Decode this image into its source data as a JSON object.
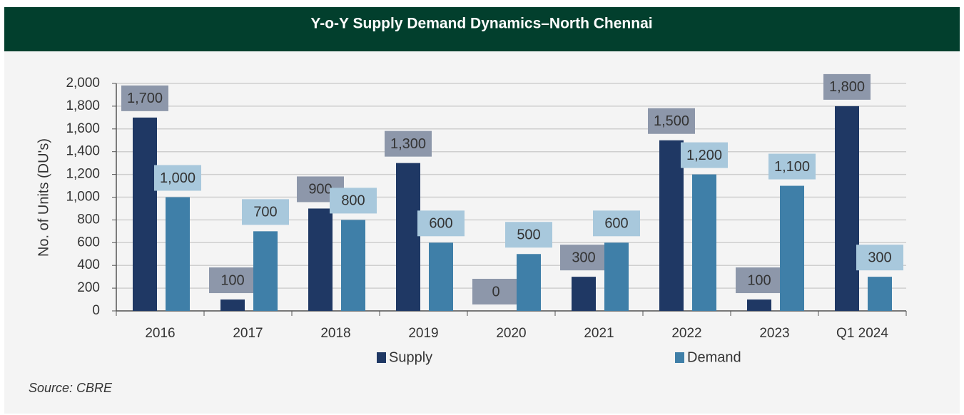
{
  "chart_data": {
    "type": "bar",
    "title": "Y-o-Y Supply Demand Dynamics–North Chennai",
    "y_label": "No. of Units (DU's)",
    "source": "Source: CBRE",
    "categories": [
      "2016",
      "2017",
      "2018",
      "2019",
      "2020",
      "2021",
      "2022",
      "2023",
      "Q1 2024"
    ],
    "series": [
      {
        "name": "Supply",
        "color": "#1f3864",
        "label_box": "#8d97aa",
        "values": [
          1700,
          100,
          900,
          1300,
          0,
          300,
          1500,
          100,
          1800
        ],
        "value_labels": [
          "1,700",
          "100",
          "900",
          "1,300",
          "0",
          "300",
          "1,500",
          "100",
          "1,800"
        ]
      },
      {
        "name": "Demand",
        "color": "#3f7fa8",
        "label_box": "#a8c8dc",
        "values": [
          1000,
          700,
          800,
          600,
          500,
          600,
          1200,
          1100,
          300
        ],
        "value_labels": [
          "1,000",
          "700",
          "800",
          "600",
          "500",
          "600",
          "1,200",
          "1,100",
          "300"
        ]
      }
    ],
    "ylim": [
      0,
      2000
    ],
    "yticks": [
      0,
      200,
      400,
      600,
      800,
      {
        "value": 1000,
        "label": "1,000"
      },
      {
        "value": 1200,
        "label": "1,200"
      },
      {
        "value": 1400,
        "label": "1,400"
      },
      {
        "value": 1600,
        "label": "1,600"
      },
      {
        "value": 1800,
        "label": "1,800"
      },
      {
        "value": 2000,
        "label": "2,000"
      }
    ],
    "grid": true,
    "legend": "bottom"
  }
}
